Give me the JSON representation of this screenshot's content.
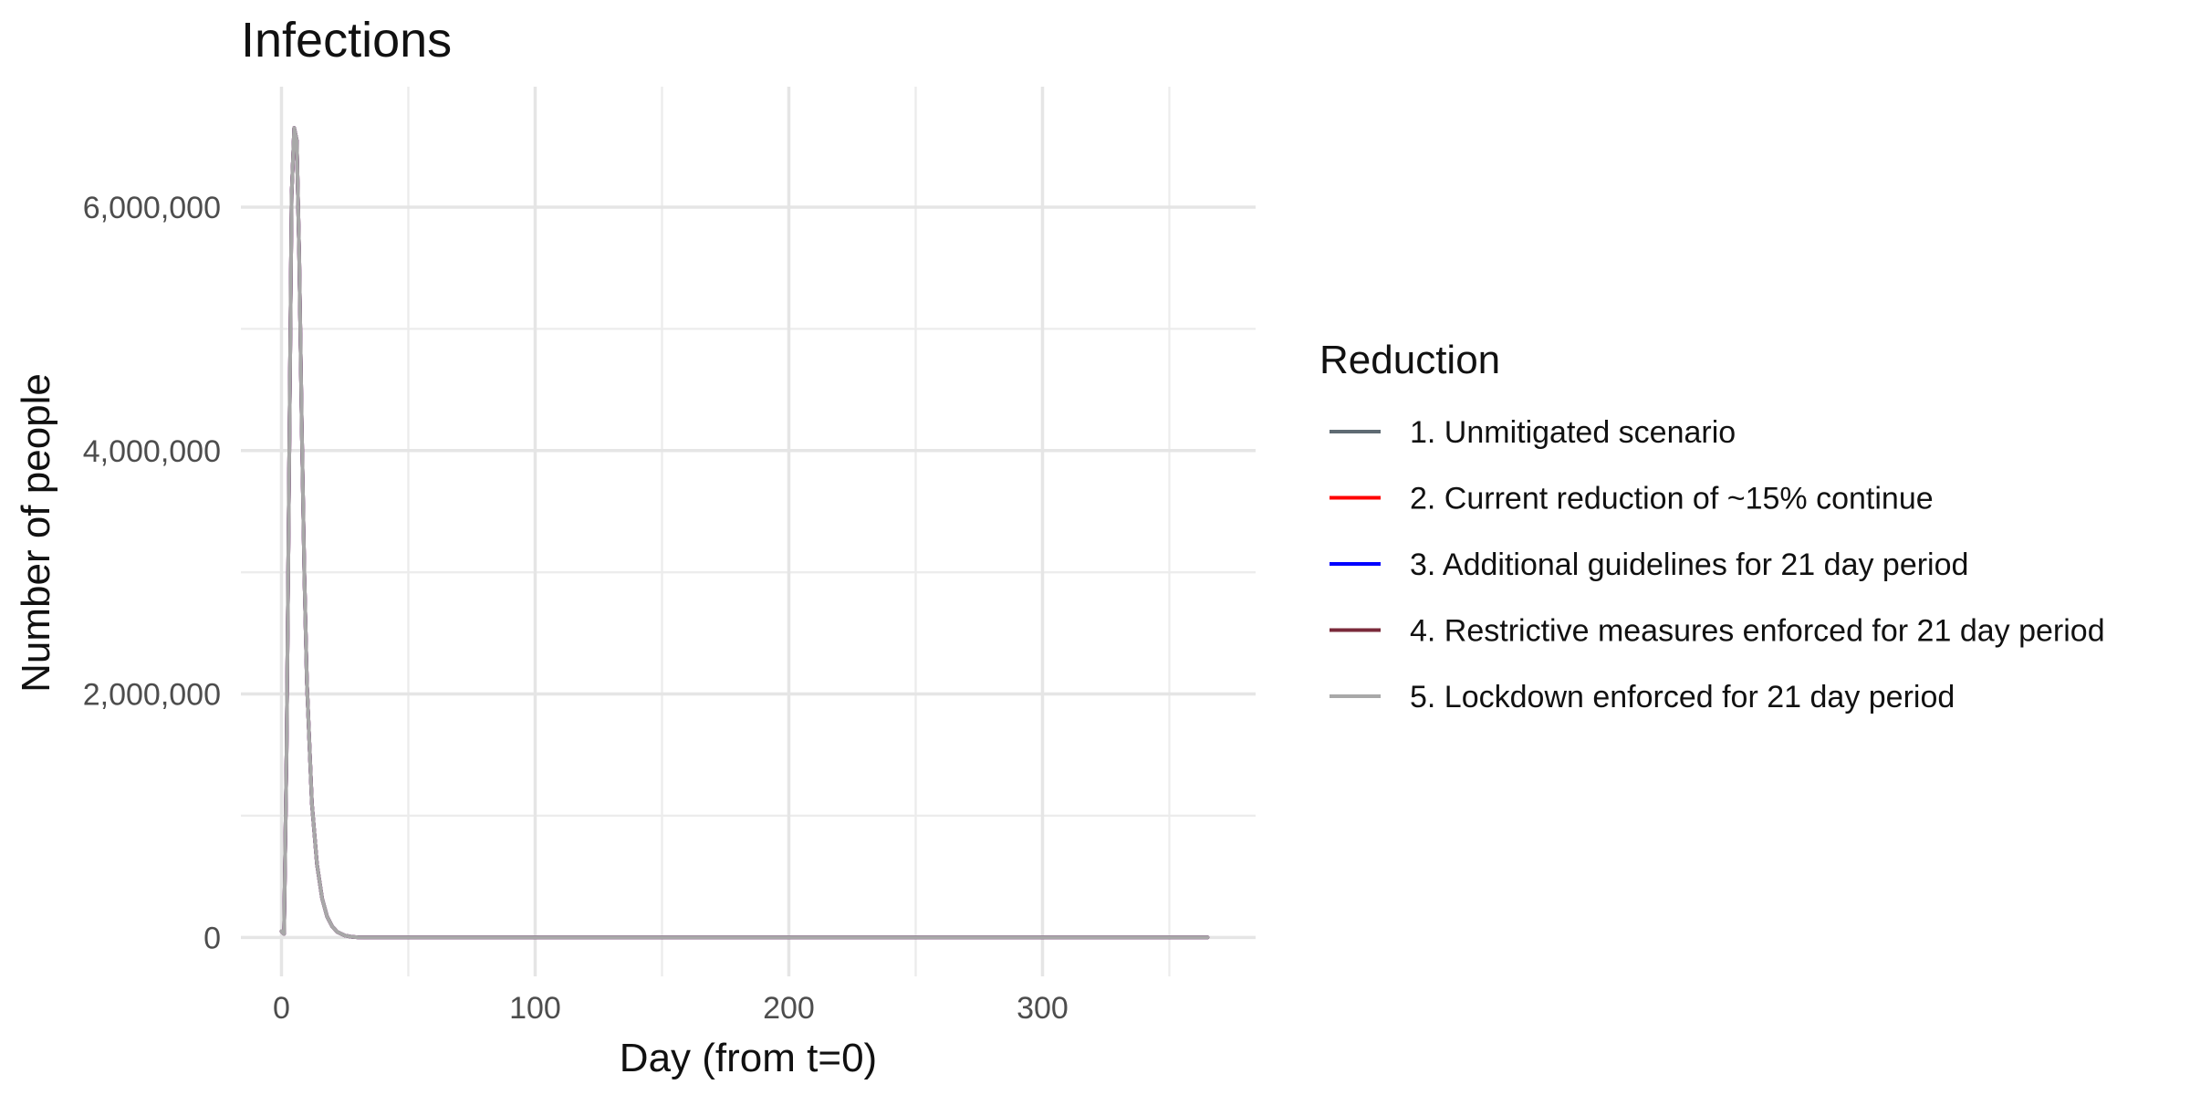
{
  "chart_data": {
    "type": "line",
    "title": "Infections",
    "xlabel": "Day (from t=0)",
    "ylabel": "Number of people",
    "xlim": [
      -16,
      384
    ],
    "ylim": [
      -320000,
      6990000
    ],
    "x_ticks": [
      0,
      100,
      200,
      300
    ],
    "x_tick_labels": [
      "0",
      "100",
      "200",
      "300"
    ],
    "y_ticks": [
      0,
      2000000,
      4000000,
      6000000
    ],
    "y_tick_labels": [
      "0",
      "2,000,000",
      "4,000,000",
      "6,000,000"
    ],
    "grid": true,
    "legend": {
      "title": "Reduction",
      "position": "right"
    },
    "series": [
      {
        "name": "1. Unmitigated scenario",
        "color": "#5f6b73",
        "x": [
          0,
          1,
          2,
          3,
          4,
          5,
          6,
          7,
          8,
          9,
          10,
          12,
          14,
          16,
          18,
          20,
          22,
          25,
          28,
          30,
          35,
          40,
          60,
          100,
          150,
          200,
          250,
          300,
          365
        ],
        "y": [
          50000,
          30000,
          1500000,
          3800000,
          6100000,
          6650000,
          6550000,
          5600000,
          4200000,
          3000000,
          2100000,
          1100000,
          600000,
          320000,
          170000,
          90000,
          45000,
          15000,
          4000,
          1500,
          300,
          50,
          0,
          0,
          0,
          0,
          0,
          0,
          0
        ]
      },
      {
        "name": "2. Current reduction of ~15% continue",
        "color": "#ff0000",
        "x": [
          0,
          1,
          2,
          3,
          4,
          5,
          6,
          7,
          8,
          9,
          10,
          12,
          14,
          16,
          18,
          20,
          22,
          25,
          28,
          30,
          35,
          40,
          60,
          100,
          150,
          200,
          250,
          300,
          365
        ],
        "y": [
          50000,
          30000,
          1500000,
          3800000,
          6100000,
          6650000,
          6550000,
          5600000,
          4200000,
          3000000,
          2100000,
          1100000,
          600000,
          320000,
          170000,
          90000,
          45000,
          15000,
          4000,
          1500,
          300,
          50,
          0,
          0,
          0,
          0,
          0,
          0,
          0
        ]
      },
      {
        "name": "3. Additional guidelines for 21 day period",
        "color": "#0000ff",
        "x": [
          0,
          1,
          2,
          3,
          4,
          5,
          6,
          7,
          8,
          9,
          10,
          12,
          14,
          16,
          18,
          20,
          22,
          25,
          28,
          30,
          35,
          40,
          60,
          100,
          150,
          200,
          250,
          300,
          365
        ],
        "y": [
          50000,
          30000,
          1500000,
          3800000,
          6100000,
          6650000,
          6550000,
          5600000,
          4200000,
          3000000,
          2100000,
          1100000,
          600000,
          320000,
          170000,
          90000,
          45000,
          15000,
          4000,
          1500,
          300,
          50,
          0,
          0,
          0,
          0,
          0,
          0,
          0
        ]
      },
      {
        "name": "4. Restrictive measures enforced for 21 day period",
        "color": "#7a2a3a",
        "x": [
          0,
          1,
          2,
          3,
          4,
          5,
          6,
          7,
          8,
          9,
          10,
          12,
          14,
          16,
          18,
          20,
          22,
          25,
          28,
          30,
          35,
          40,
          60,
          100,
          150,
          200,
          250,
          300,
          365
        ],
        "y": [
          50000,
          30000,
          1500000,
          3800000,
          6100000,
          6650000,
          6550000,
          5600000,
          4200000,
          3000000,
          2100000,
          1100000,
          600000,
          320000,
          170000,
          90000,
          45000,
          15000,
          4000,
          1500,
          300,
          50,
          0,
          0,
          0,
          0,
          0,
          0,
          0
        ]
      },
      {
        "name": "5. Lockdown enforced for 21 day period",
        "color": "#a8a8a8",
        "x": [
          0,
          1,
          2,
          3,
          4,
          5,
          6,
          7,
          8,
          9,
          10,
          12,
          14,
          16,
          18,
          20,
          22,
          25,
          28,
          30,
          35,
          40,
          60,
          100,
          150,
          200,
          250,
          300,
          365
        ],
        "y": [
          50000,
          30000,
          1500000,
          3800000,
          6100000,
          6650000,
          6550000,
          5600000,
          4200000,
          3000000,
          2100000,
          1100000,
          600000,
          320000,
          170000,
          90000,
          45000,
          15000,
          4000,
          1500,
          300,
          50,
          0,
          0,
          0,
          0,
          0,
          0,
          0
        ]
      }
    ]
  }
}
